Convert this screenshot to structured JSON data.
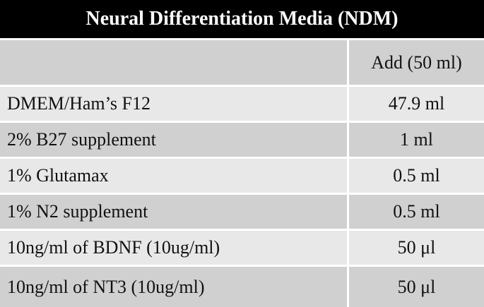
{
  "table": {
    "title": "Neural Differentiation Media (NDM)",
    "header": {
      "label": "",
      "value": "Add (50 ml)"
    },
    "rows": [
      {
        "label": "DMEM/Ham’s F12",
        "value": "47.9 ml"
      },
      {
        "label": "2% B27 supplement",
        "value": "1 ml"
      },
      {
        "label": "1% Glutamax",
        "value": "0.5 ml"
      },
      {
        "label": "1% N2 supplement",
        "value": "0.5 ml"
      },
      {
        "label": "10ng/ml of BDNF (10ug/ml)",
        "value": "50 μl"
      },
      {
        "label": "10ng/ml of NT3 (10ug/ml)",
        "value": "50 μl"
      }
    ]
  },
  "colors": {
    "title_background": "#000000",
    "title_text": "#ffffff",
    "row_dark": "#d0d0d0",
    "row_light": "#e8e8e8",
    "divider": "#ffffff"
  }
}
